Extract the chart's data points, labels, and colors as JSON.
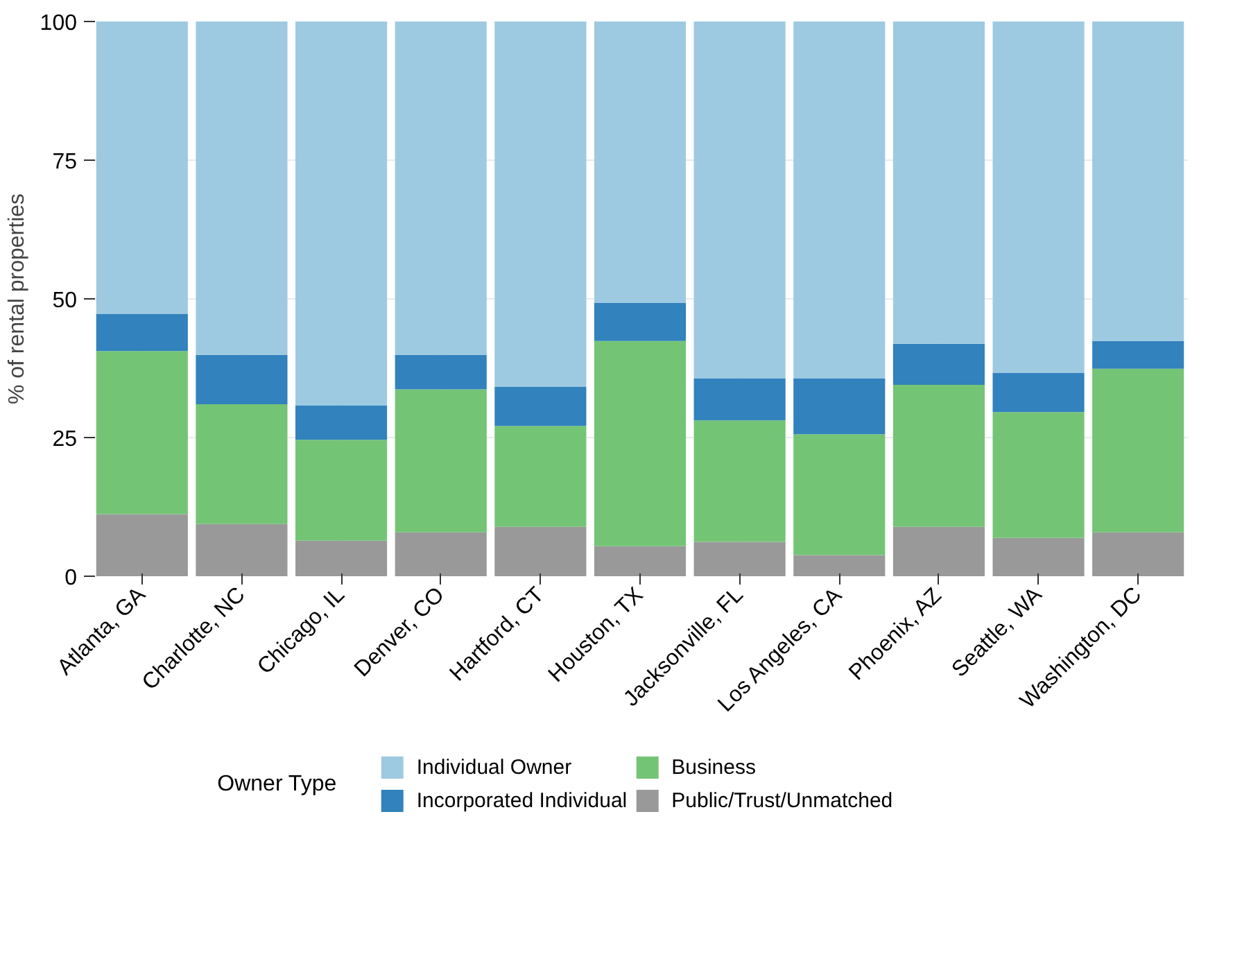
{
  "chart_data": {
    "type": "bar",
    "stacked": true,
    "ylabel": "% of rental properties",
    "legend_title": "Owner Type",
    "legend": "bottom",
    "grid": true,
    "categories": [
      "Atlanta, GA",
      "Charlotte, NC",
      "Chicago, IL",
      "Denver, CO",
      "Hartford, CT",
      "Houston, TX",
      "Jacksonville, FL",
      "Los Angeles, CA",
      "Phoenix, AZ",
      "Seattle, WA",
      "Washington, DC"
    ],
    "ylim": [
      0,
      100
    ],
    "yticks": [
      0,
      25,
      50,
      75,
      100
    ],
    "series": [
      {
        "name": "Public/Trust/Unmatched",
        "color": "#999999",
        "values": [
          11.2,
          9.4,
          6.4,
          7.9,
          8.9,
          5.4,
          6.2,
          3.8,
          8.9,
          6.9,
          7.9
        ]
      },
      {
        "name": "Business",
        "color": "#74c476",
        "values": [
          29.4,
          21.6,
          18.2,
          25.8,
          18.2,
          37.0,
          21.9,
          21.8,
          25.6,
          22.7,
          29.5
        ]
      },
      {
        "name": "Incorporated Individual",
        "color": "#3182bd",
        "values": [
          6.7,
          8.9,
          6.2,
          6.2,
          7.1,
          6.9,
          7.6,
          10.1,
          7.4,
          7.1,
          5.0
        ]
      },
      {
        "name": "Individual Owner",
        "color": "#9ecae1",
        "values": [
          52.7,
          60.1,
          69.2,
          60.1,
          65.8,
          50.7,
          64.3,
          64.3,
          58.1,
          63.3,
          57.6
        ]
      }
    ]
  }
}
